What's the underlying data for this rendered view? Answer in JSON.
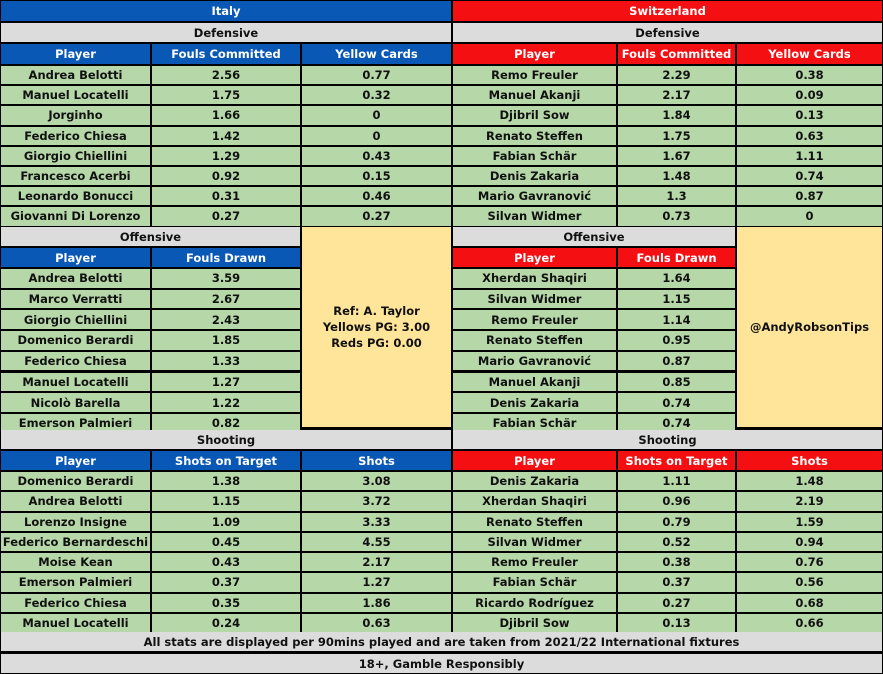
{
  "italy": {
    "team": "Italy",
    "defensive": {
      "title": "Defensive",
      "headers": [
        "Player",
        "Fouls Committed",
        "Yellow Cards"
      ],
      "rows": [
        [
          "Andrea Belotti",
          "2.56",
          "0.77"
        ],
        [
          "Manuel Locatelli",
          "1.75",
          "0.32"
        ],
        [
          "Jorginho",
          "1.66",
          "0"
        ],
        [
          "Federico Chiesa",
          "1.42",
          "0"
        ],
        [
          "Giorgio Chiellini",
          "1.29",
          "0.43"
        ],
        [
          "Francesco Acerbi",
          "0.92",
          "0.15"
        ],
        [
          "Leonardo Bonucci",
          "0.31",
          "0.46"
        ],
        [
          "Giovanni Di Lorenzo",
          "0.27",
          "0.27"
        ]
      ]
    },
    "offensive": {
      "title": "Offensive",
      "headers": [
        "Player",
        "Fouls Drawn"
      ],
      "rows": [
        [
          "Andrea Belotti",
          "3.59"
        ],
        [
          "Marco Verratti",
          "2.67"
        ],
        [
          "Giorgio Chiellini",
          "2.43"
        ],
        [
          "Domenico Berardi",
          "1.85"
        ],
        [
          "Federico Chiesa",
          "1.33"
        ],
        [
          "Manuel Locatelli",
          "1.27"
        ],
        [
          "Nicolò Barella",
          "1.22"
        ],
        [
          "Emerson Palmieri",
          "0.82"
        ]
      ]
    },
    "shooting": {
      "title": "Shooting",
      "headers": [
        "Player",
        "Shots on Target",
        "Shots"
      ],
      "rows": [
        [
          "Domenico Berardi",
          "1.38",
          "3.08"
        ],
        [
          "Andrea Belotti",
          "1.15",
          "3.72"
        ],
        [
          "Lorenzo Insigne",
          "1.09",
          "3.33"
        ],
        [
          "Federico Bernardeschi",
          "0.45",
          "4.55"
        ],
        [
          "Moise Kean",
          "0.43",
          "2.17"
        ],
        [
          "Emerson Palmieri",
          "0.37",
          "1.27"
        ],
        [
          "Federico Chiesa",
          "0.35",
          "1.86"
        ],
        [
          "Manuel Locatelli",
          "0.24",
          "0.63"
        ]
      ]
    }
  },
  "switzerland": {
    "team": "Switzerland",
    "defensive": {
      "title": "Defensive",
      "headers": [
        "Player",
        "Fouls Committed",
        "Yellow Cards"
      ],
      "rows": [
        [
          "Remo Freuler",
          "2.29",
          "0.38"
        ],
        [
          "Manuel Akanji",
          "2.17",
          "0.09"
        ],
        [
          "Djibril Sow",
          "1.84",
          "0.13"
        ],
        [
          "Renato Steffen",
          "1.75",
          "0.63"
        ],
        [
          "Fabian Schär",
          "1.67",
          "1.11"
        ],
        [
          "Denis Zakaria",
          "1.48",
          "0.74"
        ],
        [
          "Mario Gavranović",
          "1.3",
          "0.87"
        ],
        [
          "Silvan Widmer",
          "0.73",
          "0"
        ]
      ]
    },
    "offensive": {
      "title": "Offensive",
      "headers": [
        "Player",
        "Fouls Drawn"
      ],
      "rows": [
        [
          "Xherdan Shaqiri",
          "1.64"
        ],
        [
          "Silvan Widmer",
          "1.15"
        ],
        [
          "Remo Freuler",
          "1.14"
        ],
        [
          "Renato Steffen",
          "0.95"
        ],
        [
          "Mario Gavranović",
          "0.87"
        ],
        [
          "Manuel Akanji",
          "0.85"
        ],
        [
          "Denis Zakaria",
          "0.74"
        ],
        [
          "Fabian Schär",
          "0.74"
        ]
      ]
    },
    "shooting": {
      "title": "Shooting",
      "headers": [
        "Player",
        "Shots on Target",
        "Shots"
      ],
      "rows": [
        [
          "Denis Zakaria",
          "1.11",
          "1.48"
        ],
        [
          "Xherdan Shaqiri",
          "0.96",
          "2.19"
        ],
        [
          "Renato Steffen",
          "0.79",
          "1.59"
        ],
        [
          "Silvan Widmer",
          "0.52",
          "0.94"
        ],
        [
          "Remo Freuler",
          "0.38",
          "0.76"
        ],
        [
          "Fabian Schär",
          "0.37",
          "0.56"
        ],
        [
          "Ricardo Rodríguez",
          "0.27",
          "0.68"
        ],
        [
          "Djibril Sow",
          "0.13",
          "0.66"
        ]
      ]
    }
  },
  "referee": {
    "name": "Ref: A. Taylor",
    "yellows": "Yellows PG: 3.00",
    "reds": "Reds PG: 0.00"
  },
  "credit": "@AndyRobsonTips",
  "footer": {
    "note": "All stats are displayed per 90mins played and are taken from 2021/22 International fixtures",
    "disclaimer": "18+, Gamble Responsibly"
  },
  "colors": {
    "italy_blue": "#0a58b5",
    "switzerland_red": "#f40f12",
    "section_gray": "#dcdcdc",
    "row_green": "#b6d7a8",
    "info_yellow": "#ffe599"
  }
}
